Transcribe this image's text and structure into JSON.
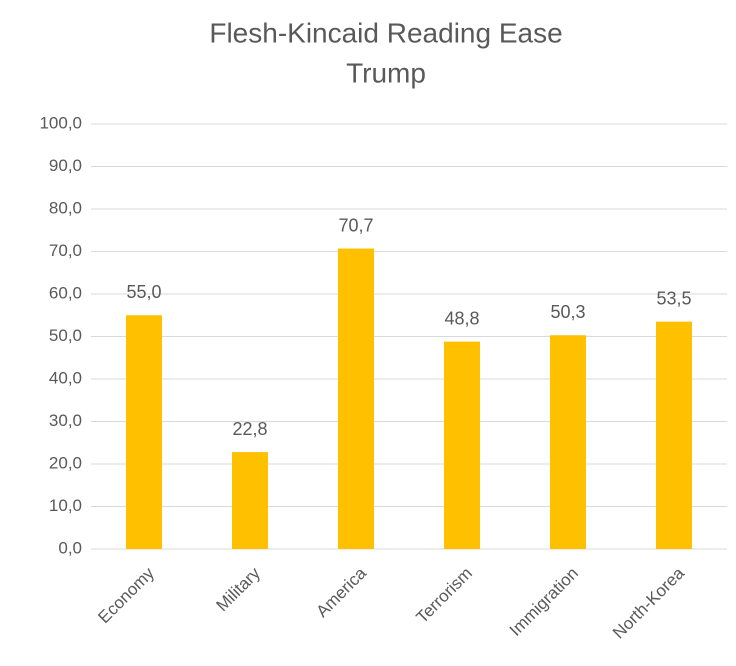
{
  "chart_data": {
    "type": "bar",
    "title": "Flesh-Kincaid Reading Ease",
    "subtitle": "Trump",
    "categories": [
      "Economy",
      "Military",
      "America",
      "Terrorism",
      "Immigration",
      "North-Korea"
    ],
    "values": [
      55.0,
      22.8,
      70.7,
      48.8,
      50.3,
      53.5
    ],
    "value_labels": [
      "55,0",
      "22,8",
      "70,7",
      "48,8",
      "50,3",
      "53,5"
    ],
    "color": "#ffc000",
    "ylim": [
      0,
      100
    ],
    "yticks": [
      {
        "value": 0,
        "label": "0,0"
      },
      {
        "value": 10,
        "label": "10,0"
      },
      {
        "value": 20,
        "label": "20,0"
      },
      {
        "value": 30,
        "label": "30,0"
      },
      {
        "value": 40,
        "label": "40,0"
      },
      {
        "value": 50,
        "label": "50,0"
      },
      {
        "value": 60,
        "label": "60,0"
      },
      {
        "value": 70,
        "label": "70,0"
      },
      {
        "value": 80,
        "label": "80,0"
      },
      {
        "value": 90,
        "label": "90,0"
      },
      {
        "value": 100,
        "label": "100,0"
      }
    ],
    "grid": true
  }
}
